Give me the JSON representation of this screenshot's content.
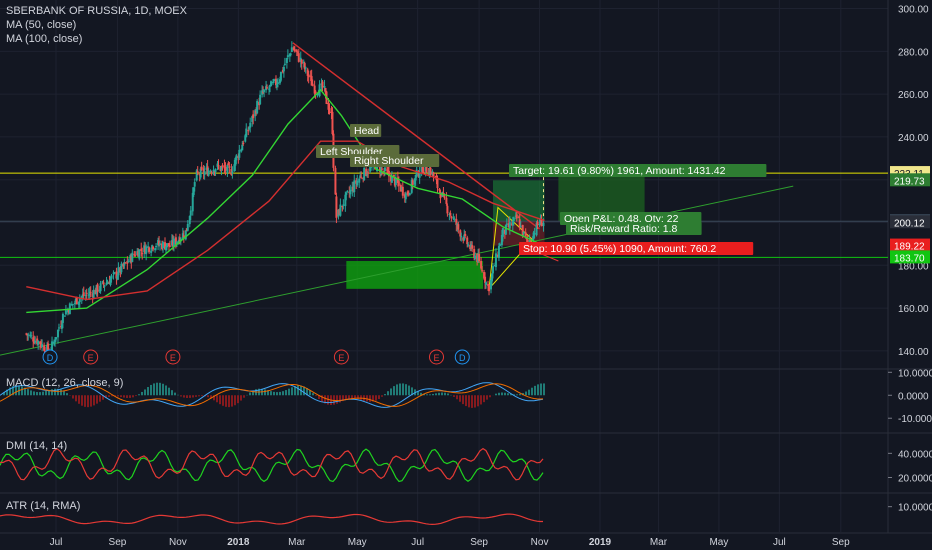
{
  "header": {
    "symbol_title": "SBERBANK OF RUSSIA, 1D, MOEX",
    "ma50_label": "MA (50, close)",
    "ma100_label": "MA (100, close)"
  },
  "panes": {
    "macd_label": "MACD (12, 26, close, 9)",
    "dmi_label": "DMI (14, 14)",
    "atr_label": "ATR (14, RMA)"
  },
  "pattern_labels": {
    "head": "Head",
    "left_shoulder": "Left Shoulder",
    "right_shoulder": "Right Shoulder"
  },
  "trade": {
    "target": "Target: 19.61 (9.80%) 1961, Amount: 1431.42",
    "open_pnl": "Open P&L: 0.48, Qty: 22",
    "risk_reward": "Risk/Reward Ratio: 1.8",
    "stop": "Stop: 10.90 (5.45%) 1090, Amount: 760.2"
  },
  "price_tags": [
    {
      "value": "223.11",
      "color": "#f0e68c"
    },
    {
      "value": "219.73",
      "color": "#2e7d32"
    },
    {
      "value": "200.60",
      "color": "#3c4b5c"
    },
    {
      "value": "200.12",
      "color": "#2a2e39"
    },
    {
      "value": "189.22",
      "color": "#e91e1e"
    },
    {
      "value": "183.70",
      "color": "#11c511"
    }
  ],
  "events": [
    "D",
    "E",
    "E",
    "E",
    "E",
    "D"
  ],
  "colors": {
    "background": "#131722",
    "up_candle": "#26a69a",
    "down_candle": "#ef5350",
    "ma50": "#33d633",
    "ma100": "#d32f2f",
    "horizontal_line": "#e6e600",
    "target_zone": "#1b8a3a",
    "stop_zone": "#c62828"
  },
  "chart_data": [
    {
      "type": "candlestick",
      "title": "SBERBANK OF RUSSIA, 1D, MOEX",
      "x_tick_labels": [
        "Jul",
        "Sep",
        "Nov",
        "2018",
        "Mar",
        "May",
        "Jul",
        "Sep",
        "Nov",
        "2019",
        "Mar",
        "May",
        "Jul",
        "Sep"
      ],
      "y_tick_labels": [
        "140.00",
        "160.00",
        "180.00",
        "200.00",
        "220.00",
        "240.00",
        "260.00",
        "280.00",
        "300.00"
      ],
      "ylim": [
        132,
        304
      ],
      "close_path": [
        {
          "date": "2017-06-01",
          "close": 148
        },
        {
          "date": "2017-06-15",
          "close": 144
        },
        {
          "date": "2017-06-25",
          "close": 139
        },
        {
          "date": "2017-07-10",
          "close": 158
        },
        {
          "date": "2017-07-25",
          "close": 165
        },
        {
          "date": "2017-08-10",
          "close": 168
        },
        {
          "date": "2017-09-01",
          "close": 176
        },
        {
          "date": "2017-09-20",
          "close": 186
        },
        {
          "date": "2017-10-10",
          "close": 190
        },
        {
          "date": "2017-10-25",
          "close": 189
        },
        {
          "date": "2017-11-10",
          "close": 196
        },
        {
          "date": "2017-11-20",
          "close": 222
        },
        {
          "date": "2017-12-10",
          "close": 226
        },
        {
          "date": "2017-12-25",
          "close": 224
        },
        {
          "date": "2018-01-10",
          "close": 242
        },
        {
          "date": "2018-01-25",
          "close": 260
        },
        {
          "date": "2018-02-10",
          "close": 266
        },
        {
          "date": "2018-02-25",
          "close": 282
        },
        {
          "date": "2018-03-05",
          "close": 276
        },
        {
          "date": "2018-03-20",
          "close": 262
        },
        {
          "date": "2018-03-28",
          "close": 263
        },
        {
          "date": "2018-04-06",
          "close": 248
        },
        {
          "date": "2018-04-10",
          "close": 202
        },
        {
          "date": "2018-04-18",
          "close": 210
        },
        {
          "date": "2018-05-05",
          "close": 222
        },
        {
          "date": "2018-05-20",
          "close": 227
        },
        {
          "date": "2018-06-05",
          "close": 221
        },
        {
          "date": "2018-06-20",
          "close": 213
        },
        {
          "date": "2018-07-05",
          "close": 226
        },
        {
          "date": "2018-07-15",
          "close": 224
        },
        {
          "date": "2018-08-01",
          "close": 206
        },
        {
          "date": "2018-08-15",
          "close": 194
        },
        {
          "date": "2018-09-01",
          "close": 182
        },
        {
          "date": "2018-09-11",
          "close": 169
        },
        {
          "date": "2018-09-25",
          "close": 195
        },
        {
          "date": "2018-10-10",
          "close": 202
        },
        {
          "date": "2018-10-20",
          "close": 190
        },
        {
          "date": "2018-11-01",
          "close": 200
        },
        {
          "date": "2018-11-06",
          "close": 200.6
        }
      ],
      "series": [
        {
          "name": "MA (50, close)",
          "points": [
            {
              "date": "2017-06-01",
              "value": 158
            },
            {
              "date": "2017-08-01",
              "value": 160
            },
            {
              "date": "2017-10-01",
              "value": 178
            },
            {
              "date": "2017-12-01",
              "value": 202
            },
            {
              "date": "2018-01-15",
              "value": 222
            },
            {
              "date": "2018-02-20",
              "value": 246
            },
            {
              "date": "2018-03-25",
              "value": 262
            },
            {
              "date": "2018-04-15",
              "value": 250
            },
            {
              "date": "2018-05-20",
              "value": 225
            },
            {
              "date": "2018-07-01",
              "value": 216
            },
            {
              "date": "2018-08-15",
              "value": 211
            },
            {
              "date": "2018-09-25",
              "value": 198
            },
            {
              "date": "2018-11-06",
              "value": 189
            }
          ]
        },
        {
          "name": "MA (100, close)",
          "points": [
            {
              "date": "2017-06-01",
              "value": 170
            },
            {
              "date": "2017-08-01",
              "value": 164
            },
            {
              "date": "2017-10-01",
              "value": 168
            },
            {
              "date": "2017-12-01",
              "value": 187
            },
            {
              "date": "2018-02-01",
              "value": 210
            },
            {
              "date": "2018-03-25",
              "value": 238
            },
            {
              "date": "2018-05-01",
              "value": 238
            },
            {
              "date": "2018-06-15",
              "value": 226
            },
            {
              "date": "2018-08-01",
              "value": 219
            },
            {
              "date": "2018-09-15",
              "value": 209
            },
            {
              "date": "2018-11-06",
              "value": 201
            }
          ]
        }
      ],
      "horizontal_levels": [
        223.11,
        200.6,
        183.7
      ],
      "target_zone": {
        "from_date": "2018-09-15",
        "to_date": "2018-11-06",
        "low": 200.6,
        "high": 219.73
      },
      "stop_zone": {
        "from_date": "2018-09-15",
        "to_date": "2018-11-06",
        "low": 189.22,
        "high": 200.6
      }
    },
    {
      "type": "line",
      "title": "MACD (12, 26, close, 9)",
      "y_tick_labels": [
        "10.0000",
        "0.0000",
        "-10.0000"
      ],
      "ylim": [
        -16,
        11
      ]
    },
    {
      "type": "line",
      "title": "DMI (14, 14)",
      "y_tick_labels": [
        "40.0000",
        "20.0000"
      ],
      "ylim": [
        8,
        56
      ]
    },
    {
      "type": "line",
      "title": "ATR (14, RMA)",
      "y_tick_labels": [
        "10.0000"
      ],
      "ylim": [
        2,
        14
      ]
    }
  ]
}
